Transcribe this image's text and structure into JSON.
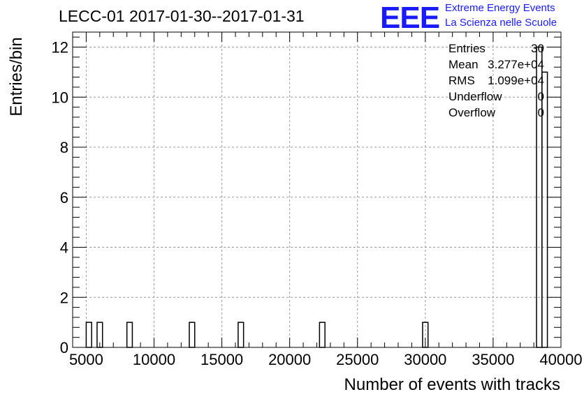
{
  "title": "LECC-01 2017-01-30--2017-01-31",
  "logo": {
    "mark": "EEE",
    "line1": "Extreme Energy Events",
    "line2": "La Scienza nelle Scuole",
    "color": "#1a1aff"
  },
  "stats": {
    "entries_label": "Entries",
    "entries_value": "30",
    "mean_label": "Mean",
    "mean_value": "3.277e+04",
    "rms_label": "RMS",
    "rms_value": "1.099e+04",
    "underflow_label": "Underflow",
    "underflow_value": "0",
    "overflow_label": "Overflow",
    "overflow_value": "0"
  },
  "chart_data": {
    "type": "bar",
    "title": "LECC-01 2017-01-30--2017-01-31",
    "xlabel": "Number of events with tracks",
    "ylabel": "Entries/bin",
    "xlim": [
      4000,
      40000
    ],
    "ylim": [
      0,
      12.6
    ],
    "bin_width": 400,
    "x_ticks": [
      5000,
      10000,
      15000,
      20000,
      25000,
      30000,
      35000,
      40000
    ],
    "y_ticks": [
      0,
      2,
      4,
      6,
      8,
      10,
      12
    ],
    "grid": true,
    "bins": [
      {
        "x": 5000,
        "count": 1
      },
      {
        "x": 5800,
        "count": 1
      },
      {
        "x": 8000,
        "count": 1
      },
      {
        "x": 12600,
        "count": 1
      },
      {
        "x": 16200,
        "count": 1
      },
      {
        "x": 22200,
        "count": 1
      },
      {
        "x": 29800,
        "count": 1
      },
      {
        "x": 38200,
        "count": 12
      },
      {
        "x": 38600,
        "count": 11
      }
    ]
  }
}
